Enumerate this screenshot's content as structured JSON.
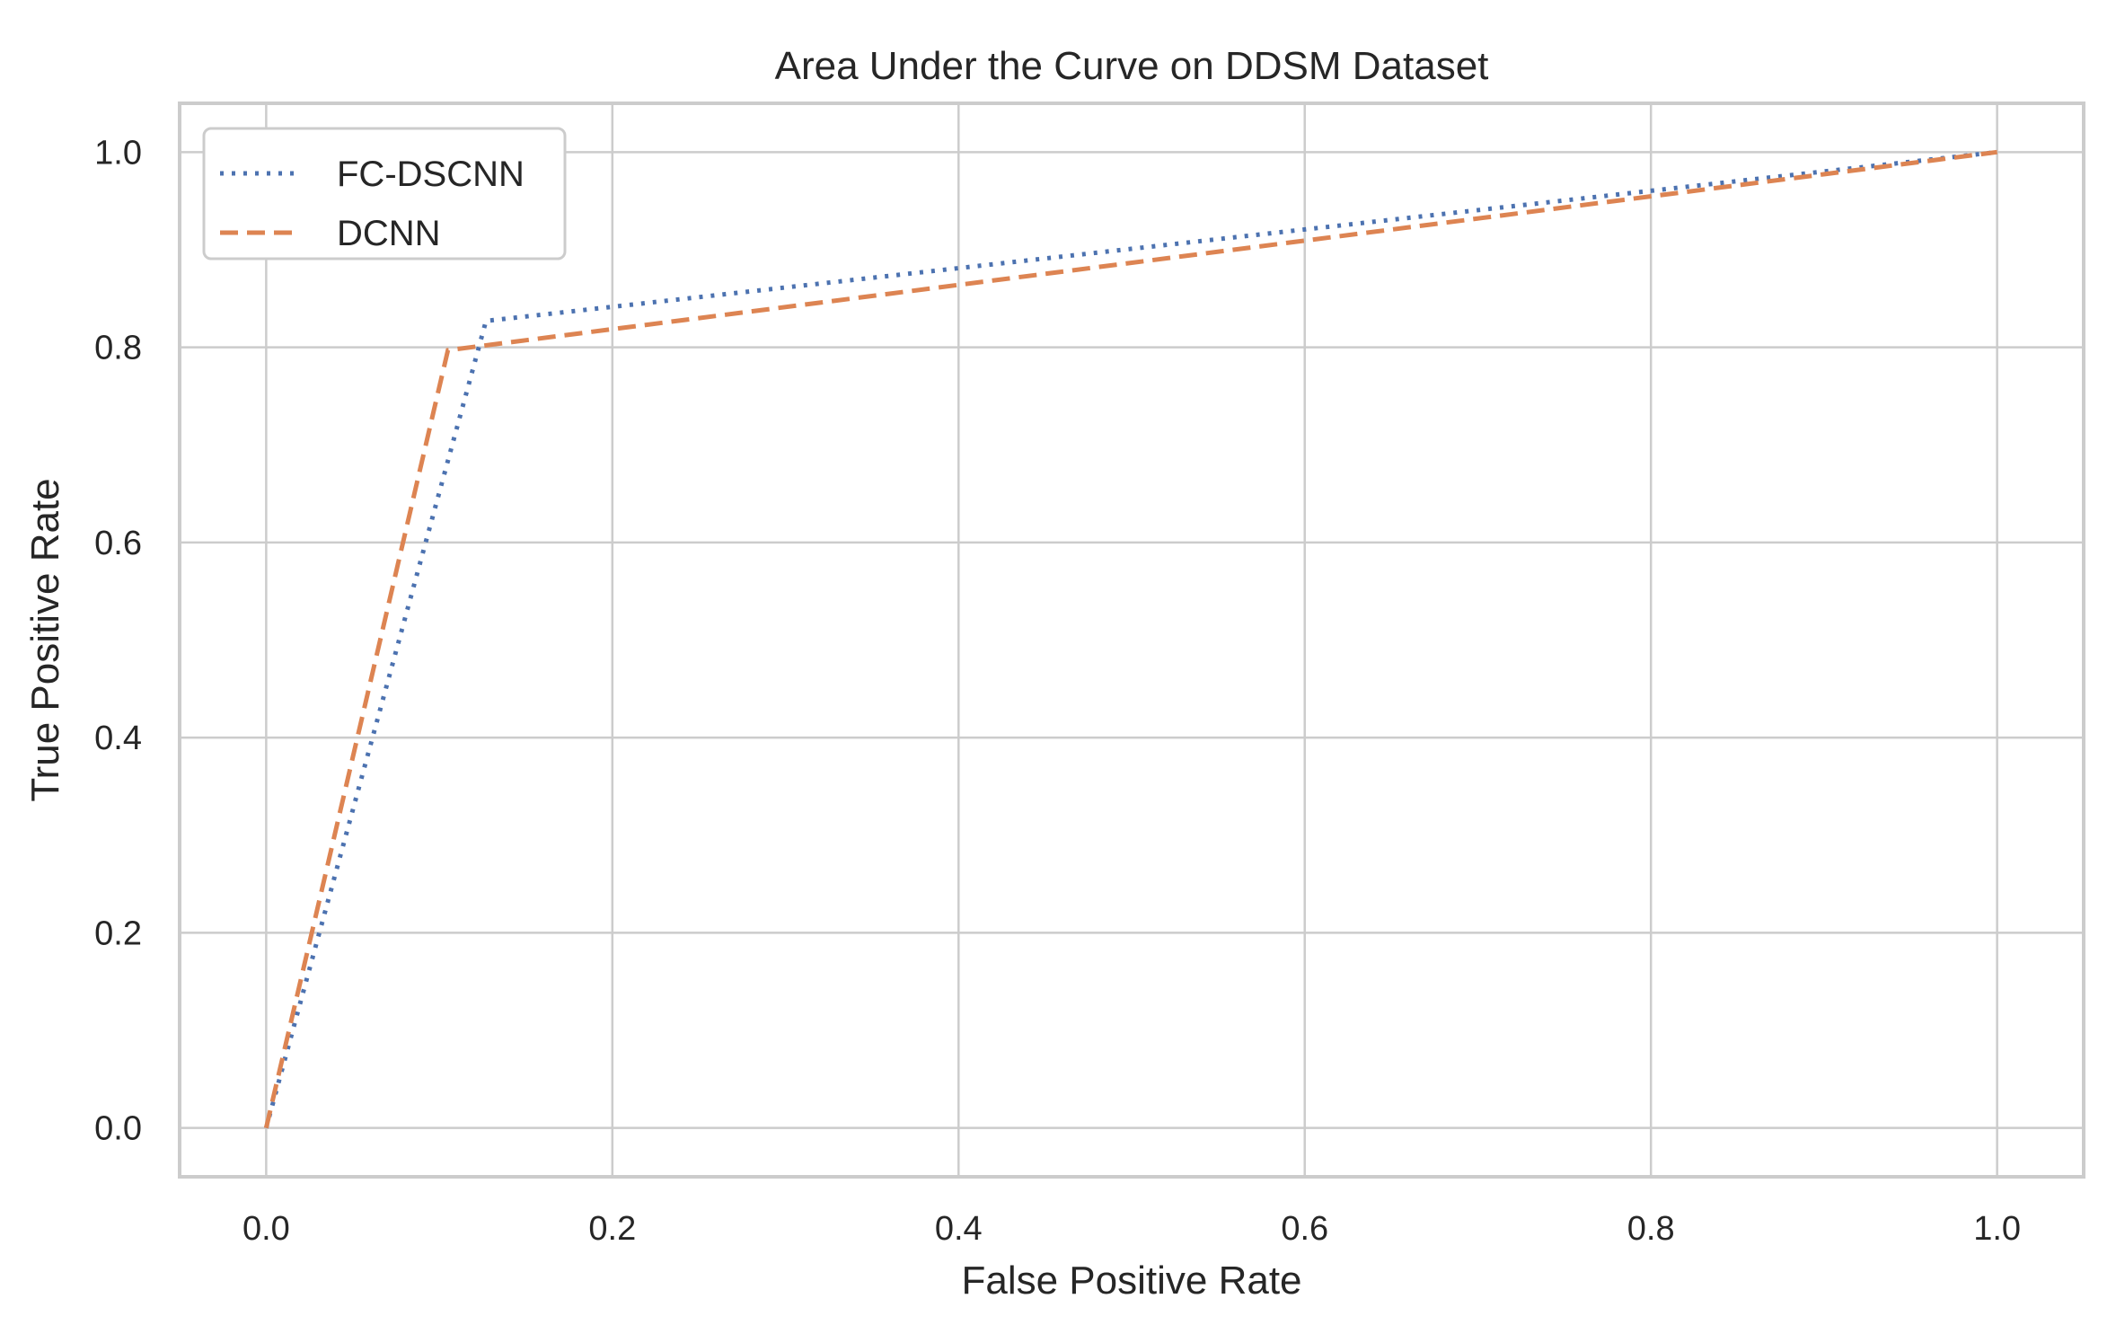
{
  "chart_data": {
    "type": "line",
    "title": "Area Under the  Curve on DDSM Dataset",
    "xlabel": "False Positive Rate",
    "ylabel": "True Positive Rate",
    "xlim": [
      -0.05,
      1.05
    ],
    "ylim": [
      -0.05,
      1.05
    ],
    "xticks": [
      0.0,
      0.2,
      0.4,
      0.6,
      0.8,
      1.0
    ],
    "yticks": [
      0.0,
      0.2,
      0.4,
      0.6,
      0.8,
      1.0
    ],
    "xtick_labels": [
      "0.0",
      "0.2",
      "0.4",
      "0.6",
      "0.8",
      "1.0"
    ],
    "ytick_labels": [
      "0.0",
      "0.2",
      "0.4",
      "0.6",
      "0.8",
      "1.0"
    ],
    "grid": true,
    "legend_position": "top-left",
    "series": [
      {
        "name": "FC-DSCNN",
        "style": "dotted",
        "color": "#4c72b0",
        "x": [
          0.0,
          0.127,
          1.0
        ],
        "y": [
          0.0,
          0.827,
          1.0
        ]
      },
      {
        "name": "DCNN",
        "style": "dashed",
        "color": "#dd8452",
        "x": [
          0.0,
          0.105,
          1.0
        ],
        "y": [
          0.0,
          0.797,
          1.0
        ]
      }
    ]
  }
}
